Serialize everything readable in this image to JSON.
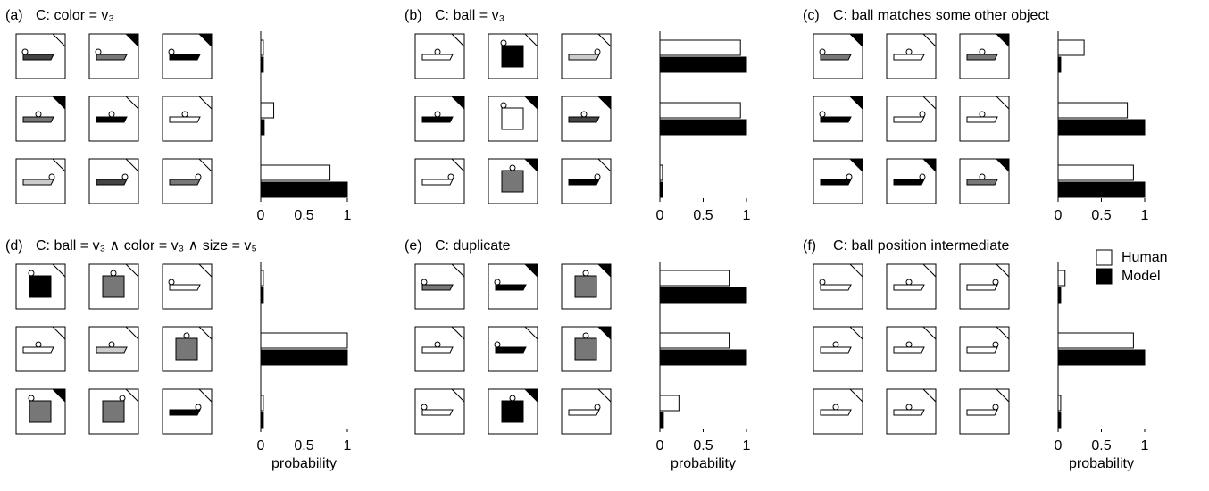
{
  "chart_data": [
    {
      "type": "barh",
      "panel_label": "(a)",
      "title": "C: color = v₃",
      "categories": [
        null,
        null,
        null
      ],
      "series": [
        {
          "name": "Human",
          "color": "#ffffff",
          "values": [
            0.03,
            0.15,
            0.8
          ]
        },
        {
          "name": "Model",
          "color": "#000000",
          "values": [
            0.03,
            0.04,
            1.0
          ]
        }
      ],
      "xlim": [
        0,
        1
      ],
      "xticks": [
        0,
        0.5,
        1
      ]
    },
    {
      "type": "barh",
      "panel_label": "(b)",
      "title": "C: ball = v₃",
      "categories": [
        null,
        null,
        null
      ],
      "series": [
        {
          "name": "Human",
          "color": "#ffffff",
          "values": [
            0.93,
            0.93,
            0.03
          ]
        },
        {
          "name": "Model",
          "color": "#000000",
          "values": [
            1.0,
            1.0,
            0.03
          ]
        }
      ],
      "xlim": [
        0,
        1
      ],
      "xticks": [
        0,
        0.5,
        1
      ]
    },
    {
      "type": "barh",
      "panel_label": "(c)",
      "title": "C: ball matches some other object",
      "categories": [
        null,
        null,
        null
      ],
      "series": [
        {
          "name": "Human",
          "color": "#ffffff",
          "values": [
            0.3,
            0.8,
            0.87
          ]
        },
        {
          "name": "Model",
          "color": "#000000",
          "values": [
            0.03,
            1.0,
            1.0
          ]
        }
      ],
      "xlim": [
        0,
        1
      ],
      "xticks": [
        0,
        0.5,
        1
      ]
    },
    {
      "type": "barh",
      "panel_label": "(d)",
      "title": "C: ball = v₃ ∧ color = v₃ ∧ size = v₅",
      "categories": [
        null,
        null,
        null
      ],
      "series": [
        {
          "name": "Human",
          "color": "#ffffff",
          "values": [
            0.03,
            1.0,
            0.03
          ]
        },
        {
          "name": "Model",
          "color": "#000000",
          "values": [
            0.03,
            1.0,
            0.03
          ]
        }
      ],
      "xlim": [
        0,
        1
      ],
      "xticks": [
        0,
        0.5,
        1
      ],
      "xlabel": "probability"
    },
    {
      "type": "barh",
      "panel_label": "(e)",
      "title": "C: duplicate",
      "categories": [
        null,
        null,
        null
      ],
      "series": [
        {
          "name": "Human",
          "color": "#ffffff",
          "values": [
            0.8,
            0.8,
            0.22
          ]
        },
        {
          "name": "Model",
          "color": "#000000",
          "values": [
            1.0,
            1.0,
            0.04
          ]
        }
      ],
      "xlim": [
        0,
        1
      ],
      "xticks": [
        0,
        0.5,
        1
      ],
      "xlabel": "probability"
    },
    {
      "type": "barh",
      "panel_label": "(f)",
      "title": "C: ball position intermediate",
      "categories": [
        null,
        null,
        null
      ],
      "series": [
        {
          "name": "Human",
          "color": "#ffffff",
          "values": [
            0.08,
            0.87,
            0.03
          ]
        },
        {
          "name": "Model",
          "color": "#000000",
          "values": [
            0.03,
            1.0,
            0.03
          ]
        }
      ],
      "xlim": [
        0,
        1
      ],
      "xticks": [
        0,
        0.5,
        1
      ],
      "xlabel": "probability",
      "legend": "upper right"
    }
  ]
}
